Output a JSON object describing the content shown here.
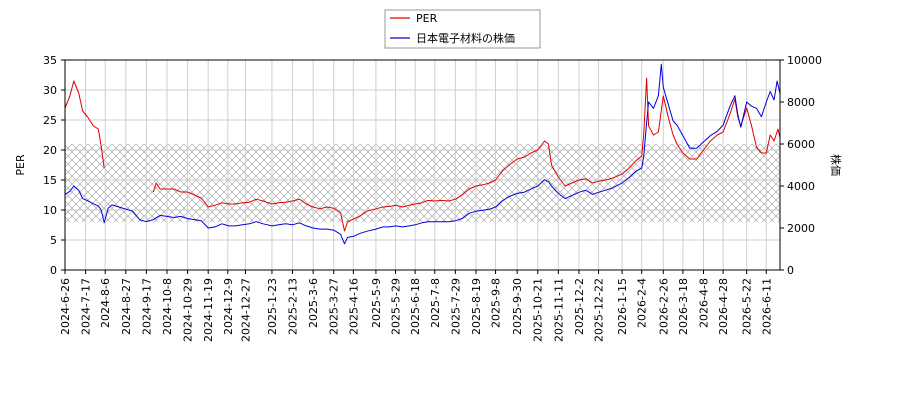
{
  "chart_data": {
    "type": "line",
    "legend_position": "top-center",
    "grid": true,
    "band_hatch": {
      "from": 8,
      "to": 21,
      "color": "#999999"
    },
    "xlim": [
      "2024-06-26",
      "2026-06-25"
    ],
    "x_ticks": [
      "2024-6-26",
      "2024-7-17",
      "2024-8-6",
      "2024-8-27",
      "2024-9-17",
      "2024-10-8",
      "2024-10-29",
      "2024-11-19",
      "2024-12-9",
      "2024-12-27",
      "2025-1-23",
      "2025-2-13",
      "2025-3-6",
      "2025-3-27",
      "2025-4-16",
      "2025-5-9",
      "2025-5-29",
      "2025-6-18",
      "2025-7-8",
      "2025-7-29",
      "2025-8-19",
      "2025-9-8",
      "2025-9-30",
      "2025-10-21",
      "2025-11-11",
      "2025-12-2",
      "2025-12-22",
      "2026-1-15",
      "2026-2-4",
      "2026-2-26",
      "2026-3-18",
      "2026-4-8",
      "2026-4-28",
      "2026-5-22",
      "2026-6-11"
    ],
    "y_left": {
      "label": "PER",
      "lim": [
        0,
        35
      ],
      "ticks": [
        0,
        5,
        10,
        15,
        20,
        25,
        30,
        35
      ]
    },
    "y_right": {
      "label": "株価",
      "lim": [
        0,
        10000
      ],
      "ticks": [
        0,
        2000,
        4000,
        6000,
        8000,
        10000
      ]
    },
    "series": [
      {
        "name": "PER",
        "axis": "left",
        "color": "#dd0000",
        "points": [
          [
            "2024-06-26",
            27.0
          ],
          [
            "2024-07-01",
            29.0
          ],
          [
            "2024-07-05",
            31.5
          ],
          [
            "2024-07-10",
            29.5
          ],
          [
            "2024-07-14",
            26.5
          ],
          [
            "2024-07-19",
            25.5
          ],
          [
            "2024-07-25",
            24.0
          ],
          [
            "2024-07-30",
            23.5
          ],
          [
            "2024-08-02",
            20.5
          ],
          [
            "2024-08-05",
            17.0
          ]
        ]
      },
      {
        "name": "PER",
        "axis": "left",
        "color": "#dd0000",
        "points": [
          [
            "2024-09-24",
            13.0
          ],
          [
            "2024-09-27",
            14.5
          ],
          [
            "2024-10-01",
            13.5
          ],
          [
            "2024-10-08",
            13.5
          ],
          [
            "2024-10-15",
            13.5
          ],
          [
            "2024-10-22",
            13.0
          ],
          [
            "2024-10-29",
            13.0
          ],
          [
            "2024-11-05",
            12.5
          ],
          [
            "2024-11-12",
            12.0
          ],
          [
            "2024-11-19",
            10.5
          ],
          [
            "2024-11-26",
            10.8
          ],
          [
            "2024-12-03",
            11.2
          ],
          [
            "2024-12-10",
            11.0
          ],
          [
            "2024-12-17",
            11.0
          ],
          [
            "2024-12-24",
            11.2
          ],
          [
            "2024-12-31",
            11.3
          ],
          [
            "2025-01-07",
            11.8
          ],
          [
            "2025-01-14",
            11.5
          ],
          [
            "2025-01-23",
            11.0
          ],
          [
            "2025-01-30",
            11.2
          ],
          [
            "2025-02-06",
            11.3
          ],
          [
            "2025-02-13",
            11.5
          ],
          [
            "2025-02-20",
            11.8
          ],
          [
            "2025-02-27",
            11.0
          ],
          [
            "2025-03-06",
            10.5
          ],
          [
            "2025-03-13",
            10.2
          ],
          [
            "2025-03-20",
            10.5
          ],
          [
            "2025-03-27",
            10.3
          ],
          [
            "2025-04-03",
            9.5
          ],
          [
            "2025-04-07",
            6.5
          ],
          [
            "2025-04-10",
            8.0
          ],
          [
            "2025-04-16",
            8.5
          ],
          [
            "2025-04-23",
            9.0
          ],
          [
            "2025-04-30",
            9.8
          ],
          [
            "2025-05-09",
            10.2
          ],
          [
            "2025-05-16",
            10.5
          ],
          [
            "2025-05-23",
            10.6
          ],
          [
            "2025-05-29",
            10.8
          ],
          [
            "2025-06-05",
            10.5
          ],
          [
            "2025-06-12",
            10.8
          ],
          [
            "2025-06-18",
            11.0
          ],
          [
            "2025-06-25",
            11.2
          ],
          [
            "2025-07-01",
            11.6
          ],
          [
            "2025-07-08",
            11.5
          ],
          [
            "2025-07-15",
            11.6
          ],
          [
            "2025-07-22",
            11.5
          ],
          [
            "2025-07-29",
            11.8
          ],
          [
            "2025-08-05",
            12.5
          ],
          [
            "2025-08-12",
            13.5
          ],
          [
            "2025-08-19",
            14.0
          ],
          [
            "2025-08-26",
            14.2
          ],
          [
            "2025-09-02",
            14.5
          ],
          [
            "2025-09-08",
            15.0
          ],
          [
            "2025-09-15",
            16.5
          ],
          [
            "2025-09-22",
            17.5
          ],
          [
            "2025-09-30",
            18.5
          ],
          [
            "2025-10-07",
            18.8
          ],
          [
            "2025-10-14",
            19.5
          ],
          [
            "2025-10-21",
            20.0
          ],
          [
            "2025-10-28",
            21.5
          ],
          [
            "2025-11-01",
            21.0
          ],
          [
            "2025-11-04",
            17.5
          ],
          [
            "2025-11-11",
            15.5
          ],
          [
            "2025-11-18",
            14.0
          ],
          [
            "2025-11-25",
            14.5
          ],
          [
            "2025-12-02",
            15.0
          ],
          [
            "2025-12-09",
            15.2
          ],
          [
            "2025-12-16",
            14.5
          ],
          [
            "2025-12-22",
            14.8
          ],
          [
            "2025-12-29",
            15.0
          ],
          [
            "2026-01-05",
            15.3
          ],
          [
            "2026-01-15",
            16.0
          ],
          [
            "2026-01-22",
            17.0
          ],
          [
            "2026-01-29",
            18.2
          ],
          [
            "2026-02-04",
            19.0
          ],
          [
            "2026-02-06",
            22.5
          ],
          [
            "2026-02-09",
            32.0
          ],
          [
            "2026-02-11",
            24.0
          ],
          [
            "2026-02-16",
            22.5
          ],
          [
            "2026-02-21",
            23.0
          ],
          [
            "2026-02-26",
            29.0
          ],
          [
            "2026-03-03",
            25.5
          ],
          [
            "2026-03-08",
            22.5
          ],
          [
            "2026-03-12",
            21.0
          ],
          [
            "2026-03-18",
            19.5
          ],
          [
            "2026-03-25",
            18.5
          ],
          [
            "2026-04-01",
            18.5
          ],
          [
            "2026-04-08",
            20.0
          ],
          [
            "2026-04-15",
            21.5
          ],
          [
            "2026-04-22",
            22.5
          ],
          [
            "2026-04-28",
            23.0
          ],
          [
            "2026-05-05",
            26.0
          ],
          [
            "2026-05-10",
            28.5
          ],
          [
            "2026-05-13",
            25.5
          ],
          [
            "2026-05-16",
            24.0
          ],
          [
            "2026-05-22",
            27.0
          ],
          [
            "2026-05-27",
            24.0
          ],
          [
            "2026-06-01",
            20.5
          ],
          [
            "2026-06-06",
            19.5
          ],
          [
            "2026-06-11",
            19.5
          ],
          [
            "2026-06-15",
            22.5
          ],
          [
            "2026-06-19",
            21.5
          ],
          [
            "2026-06-23",
            23.5
          ],
          [
            "2026-06-25",
            22.0
          ]
        ]
      },
      {
        "name": "日本電子材料の株価",
        "axis": "right",
        "color": "#0000dd",
        "points": [
          [
            "2024-06-26",
            3600
          ],
          [
            "2024-07-01",
            3750
          ],
          [
            "2024-07-05",
            4000
          ],
          [
            "2024-07-10",
            3800
          ],
          [
            "2024-07-14",
            3400
          ],
          [
            "2024-07-19",
            3300
          ],
          [
            "2024-07-25",
            3150
          ],
          [
            "2024-07-30",
            3050
          ],
          [
            "2024-08-02",
            2850
          ],
          [
            "2024-08-05",
            2250
          ],
          [
            "2024-08-09",
            2950
          ],
          [
            "2024-08-13",
            3100
          ],
          [
            "2024-08-20",
            3000
          ],
          [
            "2024-08-27",
            2900
          ],
          [
            "2024-09-03",
            2800
          ],
          [
            "2024-09-10",
            2400
          ],
          [
            "2024-09-17",
            2300
          ],
          [
            "2024-09-24",
            2400
          ],
          [
            "2024-10-01",
            2600
          ],
          [
            "2024-10-08",
            2550
          ],
          [
            "2024-10-15",
            2500
          ],
          [
            "2024-10-22",
            2550
          ],
          [
            "2024-10-29",
            2450
          ],
          [
            "2024-11-05",
            2400
          ],
          [
            "2024-11-12",
            2350
          ],
          [
            "2024-11-19",
            2000
          ],
          [
            "2024-11-26",
            2050
          ],
          [
            "2024-12-03",
            2200
          ],
          [
            "2024-12-10",
            2100
          ],
          [
            "2024-12-17",
            2100
          ],
          [
            "2024-12-24",
            2150
          ],
          [
            "2024-12-31",
            2200
          ],
          [
            "2025-01-07",
            2300
          ],
          [
            "2025-01-14",
            2200
          ],
          [
            "2025-01-23",
            2100
          ],
          [
            "2025-01-30",
            2150
          ],
          [
            "2025-02-06",
            2200
          ],
          [
            "2025-02-13",
            2150
          ],
          [
            "2025-02-20",
            2250
          ],
          [
            "2025-02-27",
            2100
          ],
          [
            "2025-03-06",
            2000
          ],
          [
            "2025-03-13",
            1950
          ],
          [
            "2025-03-20",
            1950
          ],
          [
            "2025-03-27",
            1900
          ],
          [
            "2025-04-03",
            1700
          ],
          [
            "2025-04-07",
            1250
          ],
          [
            "2025-04-10",
            1550
          ],
          [
            "2025-04-16",
            1600
          ],
          [
            "2025-04-23",
            1750
          ],
          [
            "2025-04-30",
            1850
          ],
          [
            "2025-05-09",
            1950
          ],
          [
            "2025-05-16",
            2050
          ],
          [
            "2025-05-23",
            2050
          ],
          [
            "2025-05-29",
            2100
          ],
          [
            "2025-06-05",
            2050
          ],
          [
            "2025-06-12",
            2100
          ],
          [
            "2025-06-18",
            2150
          ],
          [
            "2025-06-25",
            2250
          ],
          [
            "2025-07-01",
            2300
          ],
          [
            "2025-07-08",
            2300
          ],
          [
            "2025-07-15",
            2300
          ],
          [
            "2025-07-22",
            2300
          ],
          [
            "2025-07-29",
            2350
          ],
          [
            "2025-08-05",
            2450
          ],
          [
            "2025-08-12",
            2700
          ],
          [
            "2025-08-19",
            2800
          ],
          [
            "2025-08-26",
            2850
          ],
          [
            "2025-09-02",
            2900
          ],
          [
            "2025-09-08",
            3000
          ],
          [
            "2025-09-15",
            3300
          ],
          [
            "2025-09-22",
            3500
          ],
          [
            "2025-09-30",
            3650
          ],
          [
            "2025-10-07",
            3700
          ],
          [
            "2025-10-14",
            3850
          ],
          [
            "2025-10-21",
            4000
          ],
          [
            "2025-10-28",
            4300
          ],
          [
            "2025-11-01",
            4200
          ],
          [
            "2025-11-04",
            4000
          ],
          [
            "2025-11-11",
            3650
          ],
          [
            "2025-11-18",
            3400
          ],
          [
            "2025-11-25",
            3550
          ],
          [
            "2025-12-02",
            3700
          ],
          [
            "2025-12-09",
            3800
          ],
          [
            "2025-12-16",
            3600
          ],
          [
            "2025-12-22",
            3700
          ],
          [
            "2025-12-29",
            3800
          ],
          [
            "2026-01-05",
            3900
          ],
          [
            "2026-01-15",
            4150
          ],
          [
            "2026-01-22",
            4400
          ],
          [
            "2026-01-29",
            4700
          ],
          [
            "2026-02-04",
            4850
          ],
          [
            "2026-02-06",
            5400
          ],
          [
            "2026-02-09",
            7000
          ],
          [
            "2026-02-11",
            8000
          ],
          [
            "2026-02-16",
            7700
          ],
          [
            "2026-02-21",
            8300
          ],
          [
            "2026-02-24",
            9800
          ],
          [
            "2026-02-26",
            8700
          ],
          [
            "2026-03-03",
            7900
          ],
          [
            "2026-03-08",
            7100
          ],
          [
            "2026-03-12",
            6900
          ],
          [
            "2026-03-18",
            6400
          ],
          [
            "2026-03-25",
            5800
          ],
          [
            "2026-04-01",
            5800
          ],
          [
            "2026-04-08",
            6100
          ],
          [
            "2026-04-15",
            6400
          ],
          [
            "2026-04-22",
            6600
          ],
          [
            "2026-04-28",
            6900
          ],
          [
            "2026-05-05",
            7800
          ],
          [
            "2026-05-10",
            8300
          ],
          [
            "2026-05-13",
            7400
          ],
          [
            "2026-05-16",
            6800
          ],
          [
            "2026-05-22",
            8000
          ],
          [
            "2026-05-27",
            7800
          ],
          [
            "2026-06-01",
            7700
          ],
          [
            "2026-06-06",
            7300
          ],
          [
            "2026-06-11",
            8000
          ],
          [
            "2026-06-15",
            8500
          ],
          [
            "2026-06-19",
            8100
          ],
          [
            "2026-06-22",
            9000
          ],
          [
            "2026-06-25",
            8400
          ]
        ]
      }
    ]
  }
}
